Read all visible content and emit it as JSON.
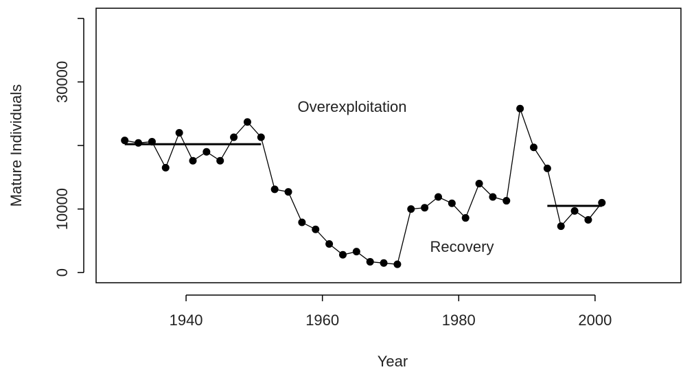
{
  "chart_data": {
    "type": "line",
    "xlabel": "Year",
    "ylabel": "Mature Individuals",
    "x": [
      1931,
      1933,
      1935,
      1937,
      1939,
      1941,
      1943,
      1945,
      1947,
      1949,
      1951,
      1953,
      1955,
      1957,
      1959,
      1961,
      1963,
      1965,
      1967,
      1969,
      1971,
      1973,
      1975,
      1977,
      1979,
      1981,
      1983,
      1985,
      1987,
      1989,
      1991,
      1993,
      1995,
      1997,
      1999,
      2001
    ],
    "series": [
      {
        "color": "#000000",
        "values": [
          20800,
          20400,
          20600,
          16500,
          22000,
          17600,
          19000,
          17600,
          21300,
          23700,
          21300,
          13100,
          12700,
          7900,
          6800,
          4500,
          2800,
          3300,
          1700,
          1500,
          1300,
          10000,
          10200,
          11900,
          10900,
          8600,
          14000,
          11900,
          11300,
          25800,
          19700,
          16400,
          7300,
          9700,
          8300,
          11000
        ]
      }
    ],
    "reference_lines": [
      {
        "x": [
          1931,
          1951
        ],
        "value": 20200
      },
      {
        "x": [
          1993,
          2001
        ],
        "value": 10500
      }
    ],
    "annotations": [
      "Overexploitation",
      "Recovery"
    ],
    "xlim": [
      1926.8,
      2012.6
    ],
    "ylim": [
      -1600,
      41600
    ],
    "xticks": [
      1940,
      1960,
      1980,
      2000
    ],
    "yticks": [
      0,
      10000,
      {
        "value": 20000,
        "label": null
      },
      30000,
      {
        "value": 40000,
        "label": null
      }
    ]
  }
}
